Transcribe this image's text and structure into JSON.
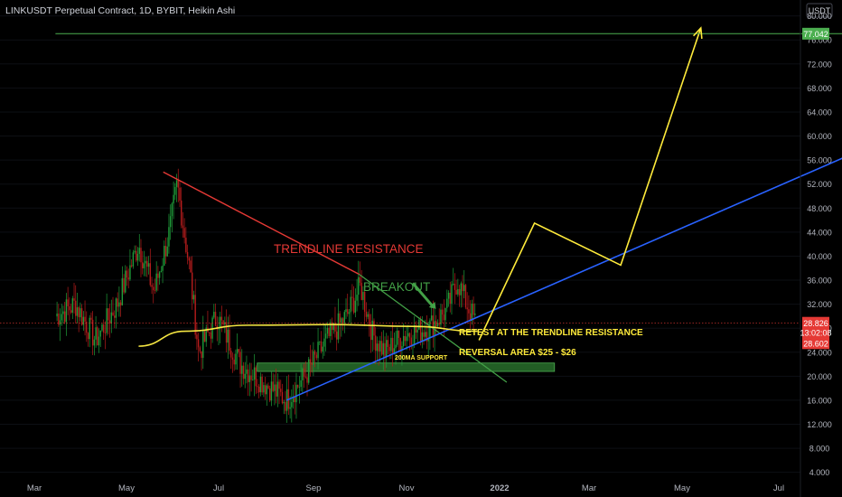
{
  "header": {
    "title": "LINKUSDT Perpetual Contract, 1D, BYBIT, Heikin Ashi",
    "currency": "USDT"
  },
  "colors": {
    "background": "#000000",
    "up_candle": "#1f9d3a",
    "down_candle": "#b71c1c",
    "trendline_resistance": "#e53935",
    "breakout_line": "#43a047",
    "support_line": "#2962ff",
    "ma200": "#f5e642",
    "projection": "#ffeb3b",
    "target_line": "#4caf50",
    "support_zone": "#2e7d32",
    "annotation_yellow": "#ffeb3b",
    "price_label_red": "#e53935",
    "price_label_green": "#4caf50"
  },
  "annotations": {
    "trendline_resistance": "TRENDLINE RESISTANCE",
    "breakout": "BREAKOUT",
    "retest": "RETEST AT THE TRENDLINE RESISTANCE",
    "reversal": "REVERSAL AREA $25 - $26",
    "ma_support": "200MA SUPPORT"
  },
  "price_labels": {
    "target": "77.042",
    "last": "28.826",
    "countdown": "13:02:08",
    "ma": "28.602"
  },
  "chart_data": {
    "type": "candlestick",
    "style": "Heikin Ashi",
    "symbol": "LINKUSDT Perpetual Contract",
    "interval": "1D",
    "exchange": "BYBIT",
    "ylim": [
      4,
      84
    ],
    "y_ticks": [
      "4.000",
      "8.000",
      "12.000",
      "16.000",
      "20.000",
      "24.000",
      "28.000",
      "32.000",
      "36.000",
      "40.000",
      "44.000",
      "48.000",
      "52.000",
      "56.000",
      "60.000",
      "64.000",
      "68.000",
      "72.000",
      "76.000",
      "80.000"
    ],
    "x_ticks": [
      "Mar",
      "May",
      "Jul",
      "Sep",
      "Nov",
      "2022",
      "Mar",
      "May",
      "Jul"
    ],
    "price_path": [
      [
        "2021-02-20",
        30
      ],
      [
        "2021-03-05",
        32
      ],
      [
        "2021-03-18",
        26
      ],
      [
        "2021-04-01",
        32
      ],
      [
        "2021-04-15",
        42
      ],
      [
        "2021-04-25",
        34
      ],
      [
        "2021-05-05",
        44
      ],
      [
        "2021-05-10",
        52
      ],
      [
        "2021-05-18",
        38
      ],
      [
        "2021-05-24",
        24
      ],
      [
        "2021-06-05",
        30
      ],
      [
        "2021-06-20",
        22
      ],
      [
        "2021-07-05",
        19
      ],
      [
        "2021-07-20",
        16
      ],
      [
        "2021-08-01",
        20
      ],
      [
        "2021-08-15",
        26
      ],
      [
        "2021-08-28",
        30
      ],
      [
        "2021-09-06",
        35
      ],
      [
        "2021-09-14",
        27
      ],
      [
        "2021-09-22",
        24
      ],
      [
        "2021-10-05",
        27
      ],
      [
        "2021-10-20",
        28
      ],
      [
        "2021-11-01",
        31
      ],
      [
        "2021-11-08",
        36
      ],
      [
        "2021-11-14",
        32
      ],
      [
        "2021-11-20",
        28.8
      ]
    ],
    "lines": [
      {
        "name": "TRENDLINE RESISTANCE",
        "points": [
          [
            "2021-05-01",
            54
          ],
          [
            "2021-09-05",
            37
          ]
        ]
      },
      {
        "name": "breakout line",
        "points": [
          [
            "2021-09-05",
            37
          ],
          [
            "2021-12-10",
            19
          ]
        ]
      },
      {
        "name": "support trendline",
        "points": [
          [
            "2021-07-20",
            16
          ],
          [
            "2022-07-31",
            58
          ]
        ]
      },
      {
        "name": "200MA",
        "points": [
          [
            "2021-04-15",
            25
          ],
          [
            "2021-05-15",
            27.5
          ],
          [
            "2021-06-25",
            28.5
          ],
          [
            "2021-08-20",
            28.6
          ],
          [
            "2021-10-10",
            28.3
          ],
          [
            "2021-11-21",
            27.5
          ]
        ]
      },
      {
        "name": "projection",
        "points": [
          [
            "2021-11-22",
            26
          ],
          [
            "2021-12-28",
            45.5
          ],
          [
            "2022-02-22",
            38.5
          ],
          [
            "2022-04-15",
            78
          ]
        ]
      },
      {
        "name": "target",
        "points": [
          [
            "2021-02-20",
            77.042
          ],
          [
            "2022-08-10",
            77.042
          ]
        ]
      }
    ],
    "zones": [
      {
        "name": "support zone",
        "from": "2021-07-01",
        "to": "2022-01-10",
        "low": 20.8,
        "high": 22.2
      }
    ],
    "last_price": 28.826,
    "target": 77.042,
    "ma200": 28.602
  }
}
